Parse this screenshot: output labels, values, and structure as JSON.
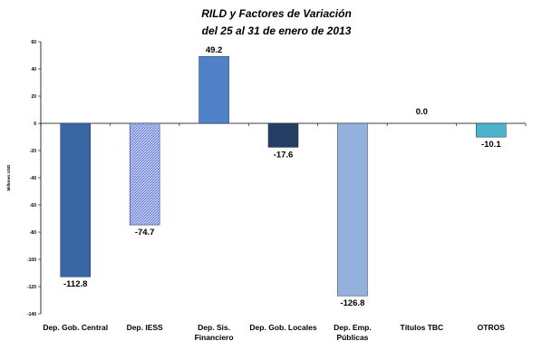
{
  "chart_data": {
    "type": "bar",
    "title": "RILD y Factores de Variación",
    "subtitle": "del 25 al 31 de enero de 2013",
    "ylabel": "Millones USD",
    "ylim": [
      -140,
      60
    ],
    "yticks": [
      60,
      40,
      20,
      0,
      -20,
      -40,
      -60,
      -80,
      -100,
      -120,
      -140
    ],
    "grid": false,
    "categories": [
      [
        "Dep. Gob. Central"
      ],
      [
        "Dep. IESS"
      ],
      [
        "Dep. Sis.",
        "Financiero"
      ],
      [
        "Dep. Gob. Locales"
      ],
      [
        "Dep. Emp.",
        "Públicas"
      ],
      [
        "Títulos TBC"
      ],
      [
        "OTROS"
      ]
    ],
    "values": [
      -112.8,
      -74.7,
      49.2,
      -17.6,
      -126.8,
      0.0,
      -10.1
    ],
    "value_labels": [
      "-112.8",
      "-74.7",
      "49.2",
      "-17.6",
      "-126.8",
      "0.0",
      "-10.1"
    ],
    "colors": [
      "#3a66a5",
      "#7b92e2",
      "#4f82c8",
      "#243e63",
      "#93b1dc",
      "#ffffff",
      "#4bb4cc"
    ],
    "patterned": [
      false,
      true,
      false,
      false,
      false,
      false,
      false
    ]
  }
}
